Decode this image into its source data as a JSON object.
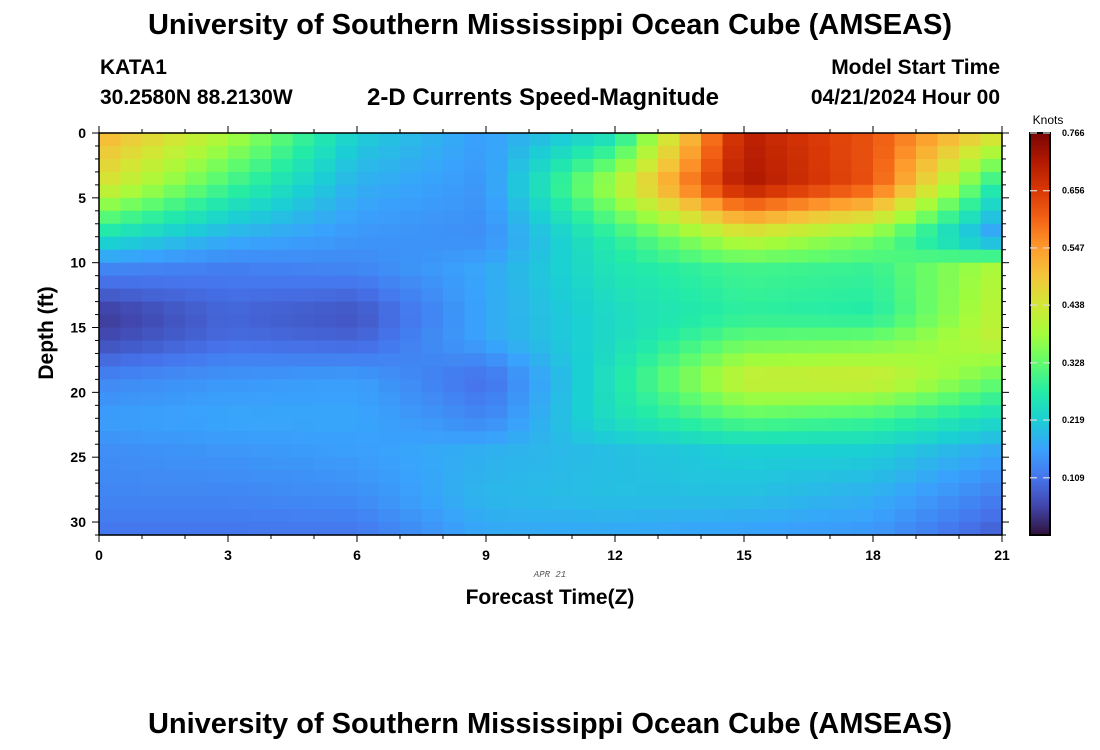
{
  "header": {
    "title": "University of Southern Mississippi Ocean Cube (AMSEAS)",
    "station": "KATA1",
    "coords": "30.2580N  88.2130W",
    "subtitle": "2-D Currents Speed-Magnitude",
    "model_start_label": "Model Start Time",
    "model_start_value": "04/21/2024 Hour 00"
  },
  "footer": {
    "title": "University of Southern Mississippi Ocean Cube (AMSEAS)"
  },
  "chart_data": {
    "type": "heatmap",
    "title": "2-D Currents Speed-Magnitude",
    "xlabel": "Forecast Time(Z)",
    "ylabel": "Depth (ft)",
    "date_annotation": "APR 21",
    "xlim": [
      0,
      21
    ],
    "ylim": [
      0,
      31
    ],
    "x_ticks": [
      0,
      3,
      6,
      9,
      12,
      15,
      18,
      21
    ],
    "y_ticks": [
      0,
      5,
      10,
      15,
      20,
      25,
      30
    ],
    "x_hours": [
      0,
      3,
      6,
      9,
      12,
      15,
      18,
      21
    ],
    "depth_ft": [
      0,
      4,
      8,
      10.5,
      14,
      16,
      19,
      22,
      24.5,
      28,
      31
    ],
    "speed_knots": [
      [
        0.52,
        0.4,
        0.22,
        0.16,
        0.24,
        0.7,
        0.62,
        0.45
      ],
      [
        0.45,
        0.3,
        0.18,
        0.15,
        0.4,
        0.72,
        0.62,
        0.25
      ],
      [
        0.25,
        0.18,
        0.15,
        0.14,
        0.28,
        0.42,
        0.35,
        0.14
      ],
      [
        0.13,
        0.12,
        0.13,
        0.17,
        0.26,
        0.3,
        0.29,
        0.4
      ],
      [
        0.04,
        0.09,
        0.07,
        0.17,
        0.24,
        0.28,
        0.27,
        0.42
      ],
      [
        0.06,
        0.1,
        0.09,
        0.17,
        0.24,
        0.33,
        0.34,
        0.42
      ],
      [
        0.13,
        0.15,
        0.16,
        0.1,
        0.26,
        0.43,
        0.44,
        0.33
      ],
      [
        0.16,
        0.17,
        0.17,
        0.13,
        0.25,
        0.32,
        0.3,
        0.24
      ],
      [
        0.14,
        0.15,
        0.16,
        0.18,
        0.2,
        0.22,
        0.22,
        0.17
      ],
      [
        0.13,
        0.13,
        0.14,
        0.19,
        0.2,
        0.2,
        0.18,
        0.12
      ],
      [
        0.11,
        0.11,
        0.11,
        0.17,
        0.17,
        0.16,
        0.15,
        0.08
      ]
    ],
    "colorbar": {
      "unit": "Knots",
      "ticks": [
        0.766,
        0.656,
        0.547,
        0.438,
        0.328,
        0.219,
        0.109
      ],
      "tick_labels": [
        "0.766",
        "0.656",
        "0.547",
        "0.438",
        "0.328",
        "0.219",
        "0.109"
      ],
      "range": [
        0.0,
        0.766
      ],
      "colormap": [
        "#30123b",
        "#4145ab",
        "#4675ed",
        "#39a2fc",
        "#1bcfd4",
        "#24eca6",
        "#61fc6c",
        "#a4fc3b",
        "#d1e834",
        "#f3c63a",
        "#fe9b2d",
        "#f36315",
        "#d93806",
        "#b11901",
        "#7a0402"
      ]
    }
  }
}
